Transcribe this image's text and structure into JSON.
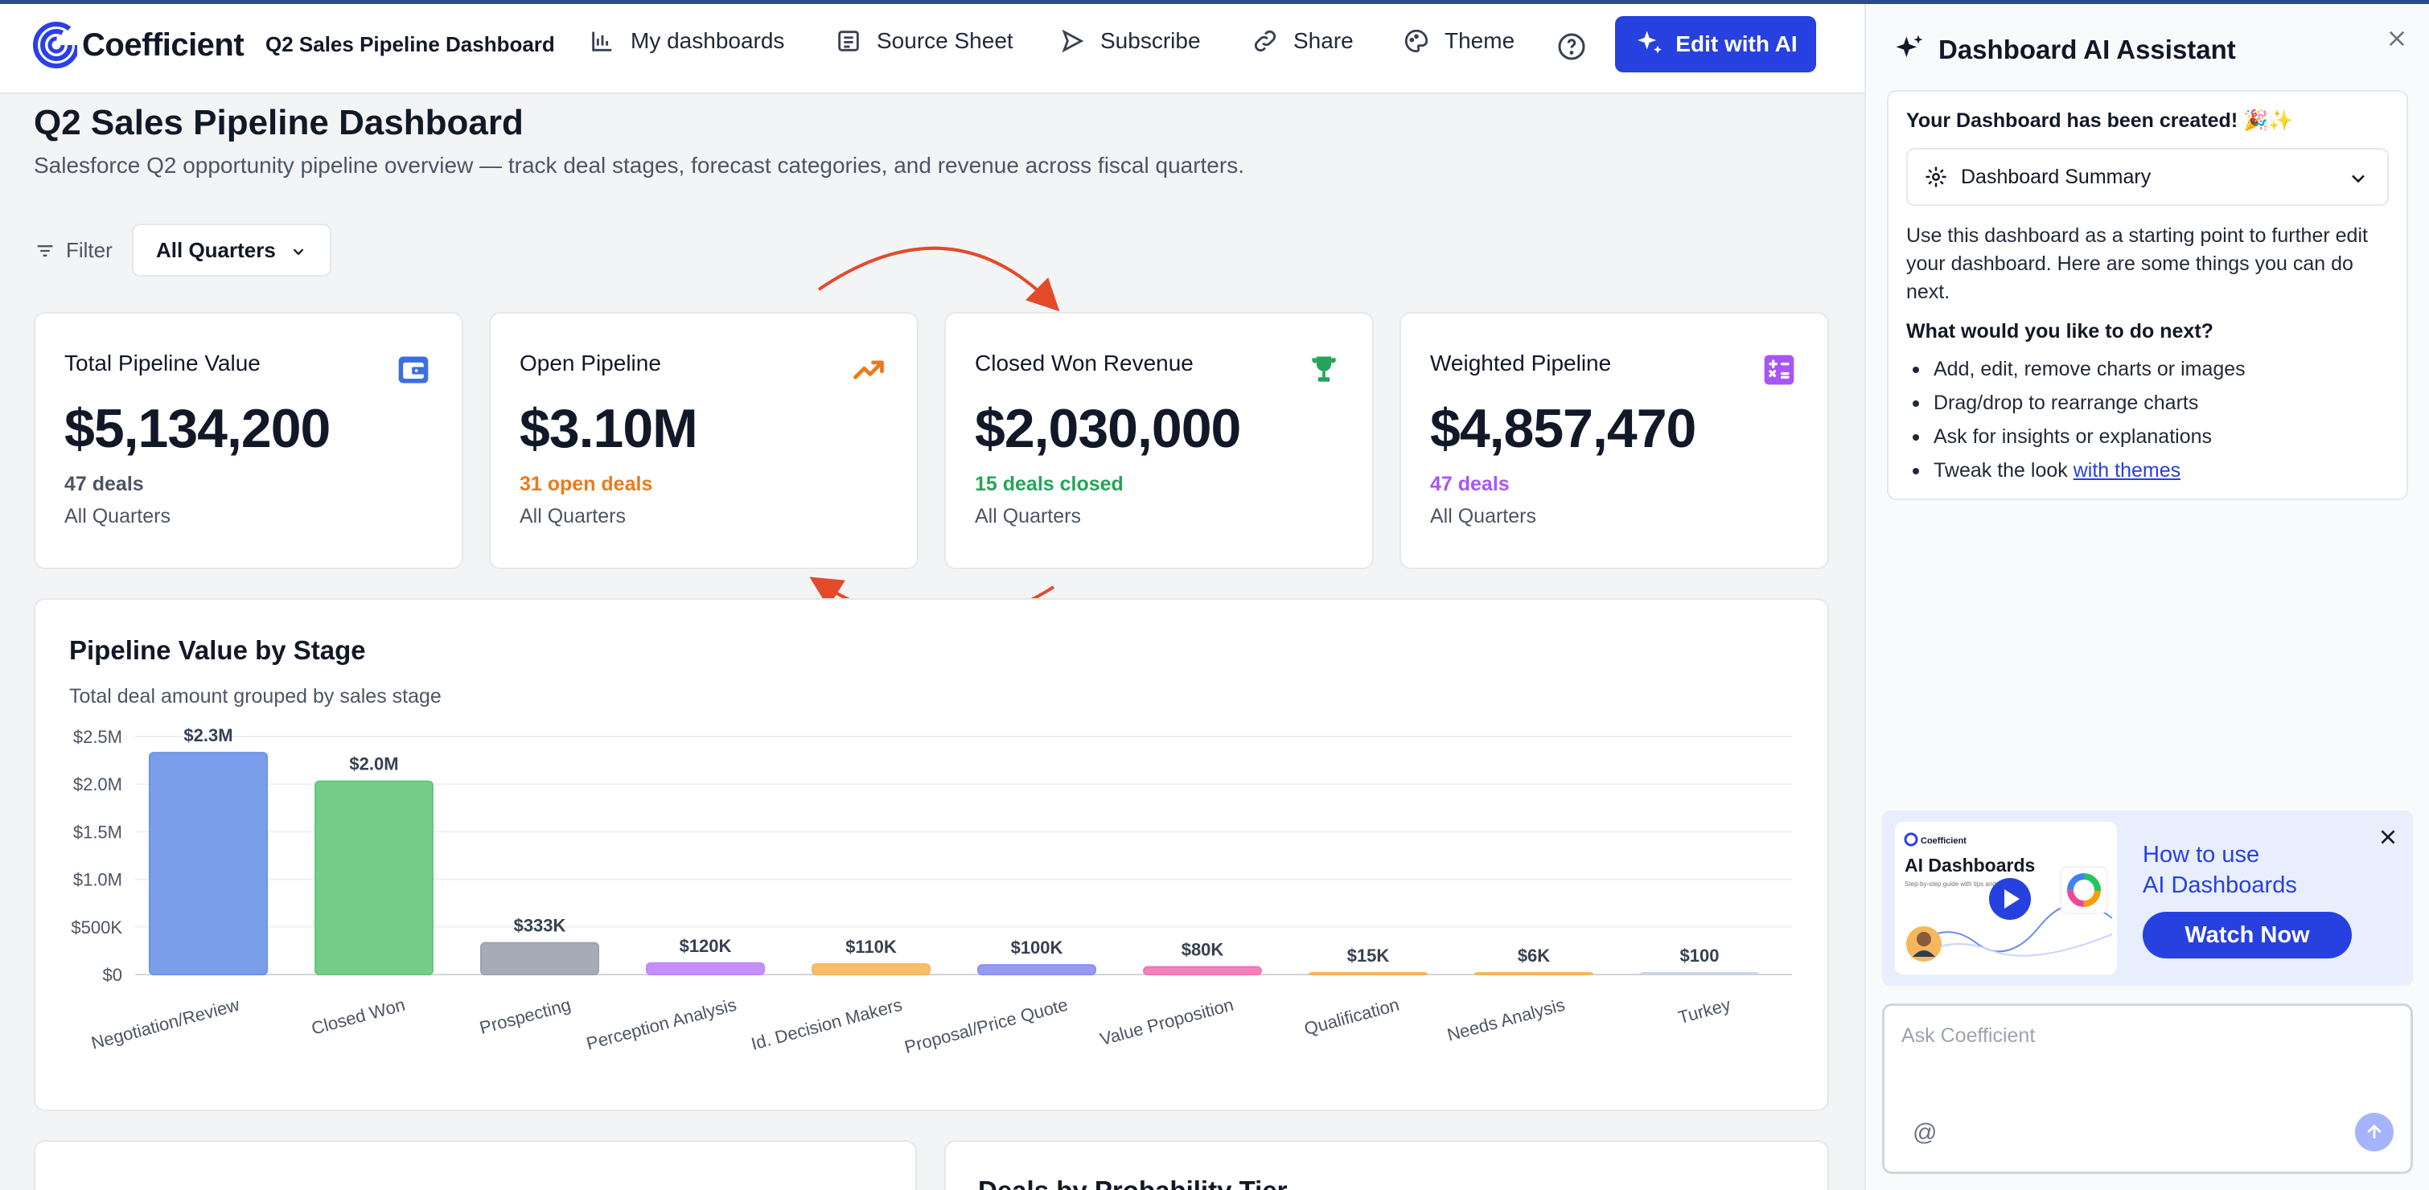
{
  "app": {
    "name": "Coefficient"
  },
  "topbar": {
    "dashboard_name": "Q2 Sales Pipeline Dashboard",
    "nav": [
      {
        "label": "My dashboards",
        "icon": "chart-bars-icon"
      },
      {
        "label": "Source Sheet",
        "icon": "sheet-icon"
      },
      {
        "label": "Subscribe",
        "icon": "send-icon"
      },
      {
        "label": "Share",
        "icon": "link-icon"
      },
      {
        "label": "Theme",
        "icon": "palette-icon"
      }
    ],
    "help_icon": "question-circle-icon",
    "edit_ai_label": "Edit with AI"
  },
  "main": {
    "title": "Q2 Sales Pipeline Dashboard",
    "subtitle": "Salesforce Q2 opportunity pipeline overview — track deal stages, forecast categories, and revenue across fiscal quarters.",
    "filter_label": "Filter",
    "filter_value": "All Quarters"
  },
  "cards": [
    {
      "title": "Total Pipeline Value",
      "value": "$5,134,200",
      "deals": "47 deals",
      "period": "All Quarters",
      "icon": "wallet-icon",
      "accent": "#3b6fe0",
      "deals_color": "#4b5563"
    },
    {
      "title": "Open Pipeline",
      "value": "$3.10M",
      "deals": "31 open deals",
      "period": "All Quarters",
      "icon": "trending-up-icon",
      "accent": "#ea7a1c",
      "deals_color": "#ea7a1c"
    },
    {
      "title": "Closed Won Revenue",
      "value": "$2,030,000",
      "deals": "15 deals closed",
      "period": "All Quarters",
      "icon": "trophy-icon",
      "accent": "#22a55a",
      "deals_color": "#22a55a"
    },
    {
      "title": "Weighted Pipeline",
      "value": "$4,857,470",
      "deals": "47 deals",
      "period": "All Quarters",
      "icon": "calculator-icon",
      "accent": "#a855f7",
      "deals_color": "#a855f7"
    }
  ],
  "chart_data": {
    "type": "bar",
    "title": "Pipeline Value by Stage",
    "subtitle": "Total deal amount grouped by sales stage",
    "categories": [
      "Negotiation/Review",
      "Closed Won",
      "Prospecting",
      "Perception Analysis",
      "Id. Decision Makers",
      "Proposal/Price Quote",
      "Value Proposition",
      "Qualification",
      "Needs Analysis",
      "Turkey"
    ],
    "values": [
      2330000,
      2030000,
      333000,
      120000,
      110000,
      100000,
      80000,
      15000,
      6000,
      100
    ],
    "data_labels": [
      "$2.3M",
      "$2.0M",
      "$333K",
      "$120K",
      "$110K",
      "$100K",
      "$80K",
      "$15K",
      "$6K",
      "$100"
    ],
    "colors": [
      "#6b93e8",
      "#66c77a",
      "#9ca3af",
      "#c084fc",
      "#f5b75a",
      "#8b8ff0",
      "#f472b6",
      "#f5b75a",
      "#f5b75a",
      "#cbd5e1"
    ],
    "ylim": [
      0,
      2500000
    ],
    "y_ticks": [
      0,
      500000,
      1000000,
      1500000,
      2000000,
      2500000
    ],
    "y_tick_labels": [
      "$0",
      "$500K",
      "$1.0M",
      "$1.5M",
      "$2.0M",
      "$2.5M"
    ],
    "grid": true
  },
  "bottom": {
    "right_title": "Deals by Probability Tier"
  },
  "panel": {
    "title": "Dashboard AI Assistant",
    "created_msg": "Your Dashboard has been created! 🎉✨",
    "summary_label": "Dashboard Summary",
    "body": "Use this dashboard as a starting point to further edit your dashboard. Here are some things you can do next.",
    "question": "What would you like to do next?",
    "items": [
      "Add, edit, remove charts or images",
      "Drag/drop to rearrange charts",
      "Ask for insights or explanations"
    ],
    "last_item_prefix": "Tweak the look ",
    "last_item_link": "with themes",
    "promo": {
      "thumb_brand": "Coefficient",
      "thumb_title": "AI Dashboards",
      "thumb_sub": "Step-by-step guide with tips and tricks",
      "heading_line1": "How to use",
      "heading_line2": "AI Dashboards",
      "button": "Watch Now"
    },
    "ask_placeholder": "Ask Coefficient",
    "at_symbol": "@"
  }
}
